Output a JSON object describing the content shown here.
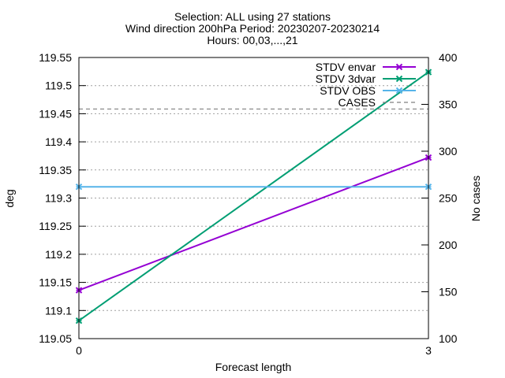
{
  "chart_data": {
    "type": "line",
    "title_lines": [
      "Selection: ALL using    27 stations",
      "Wind direction 200hPa   Period: 20230207-20230214",
      "Hours: 00,03,...,21"
    ],
    "xlabel": "Forecast length",
    "ylabel": "deg",
    "y2label": "No cases",
    "x": [
      0,
      3
    ],
    "xticks": [
      "0",
      "3"
    ],
    "ylim": [
      119.05,
      119.55
    ],
    "yticks": [
      "119.05",
      "119.1",
      "119.15",
      "119.2",
      "119.25",
      "119.3",
      "119.35",
      "119.4",
      "119.45",
      "119.5",
      "119.55"
    ],
    "y2lim": [
      100,
      400
    ],
    "y2ticks": [
      "100",
      "150",
      "200",
      "250",
      "300",
      "350",
      "400"
    ],
    "grid": true,
    "legend_position": "top-right",
    "series": [
      {
        "name": "STDV envar",
        "axis": "left",
        "color": "#9400d3",
        "marker": "x",
        "values": [
          119.136,
          119.372
        ]
      },
      {
        "name": "STDV 3dvar",
        "axis": "left",
        "color": "#009e73",
        "marker": "x",
        "values": [
          119.082,
          119.524
        ]
      },
      {
        "name": "STDV OBS",
        "axis": "left",
        "color": "#56b4e9",
        "marker": "x",
        "values": [
          119.32,
          119.32
        ]
      },
      {
        "name": "CASES",
        "axis": "right",
        "color": "#808080",
        "dashed": true,
        "values": [
          345,
          345
        ]
      }
    ]
  }
}
